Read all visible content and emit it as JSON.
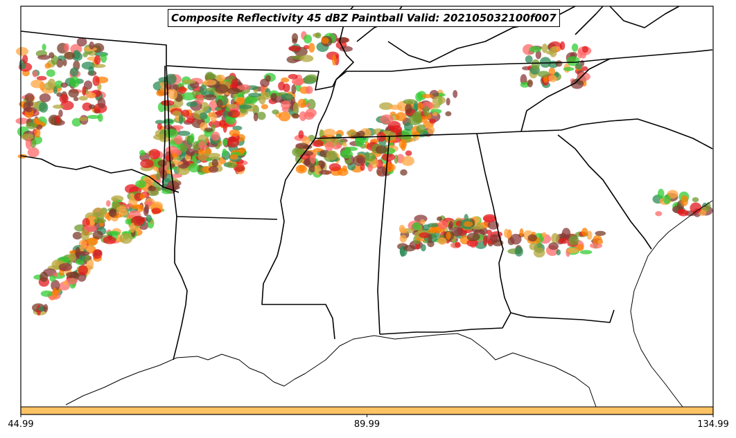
{
  "title": "Composite Reflectivity 45 dBZ Paintball Valid: 202105032100f007",
  "colorbar": {
    "fill_color": "#FDC263",
    "ticks": [
      {
        "value": 44.99,
        "label": "44.99"
      },
      {
        "value": 89.99,
        "label": "89.99"
      },
      {
        "value": 134.99,
        "label": "134.99"
      }
    ],
    "range": [
      44.99,
      134.99
    ]
  },
  "palette": [
    "#e31a1c",
    "#ff7f00",
    "#33cc33",
    "#8b3a3a",
    "#b2a63a",
    "#2e8b57",
    "#ff6a6a",
    "#ffa640",
    "#6e9a2e",
    "#7a3c2a"
  ],
  "map": {
    "background": "#ffffff",
    "boundary_color": "#000000",
    "grid": false
  }
}
